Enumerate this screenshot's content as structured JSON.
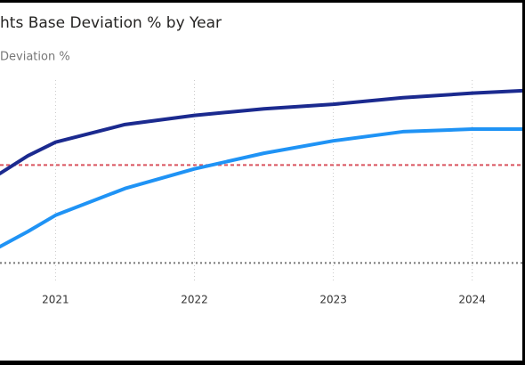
{
  "chart_data": {
    "type": "line",
    "title": "hts Base Deviation % by Year",
    "subtitle": "Deviation %",
    "x": [
      2020.6,
      2020.8,
      2021,
      2021.5,
      2022,
      2022.5,
      2023,
      2023.5,
      2024,
      2024.38
    ],
    "series": [
      {
        "color": "#1b2a8f",
        "values": [
          13.7,
          16.4,
          18.5,
          21.2,
          22.6,
          23.6,
          24.3,
          25.3,
          26.0,
          26.4
        ]
      },
      {
        "color": "#1f93f5",
        "values": [
          2.5,
          4.8,
          7.3,
          11.4,
          14.4,
          16.8,
          18.7,
          20.1,
          20.5,
          20.5
        ]
      }
    ],
    "reference_lines": [
      {
        "value": 15,
        "color": "#d9535f",
        "style": "dashed"
      },
      {
        "value": 0,
        "color": "#777777",
        "style": "dotted"
      }
    ],
    "xlim": [
      2020.6,
      2024.38
    ],
    "xticks": [
      2021,
      2022,
      2023,
      2024
    ],
    "ylim": [
      -2,
      28
    ],
    "grid": true
  }
}
